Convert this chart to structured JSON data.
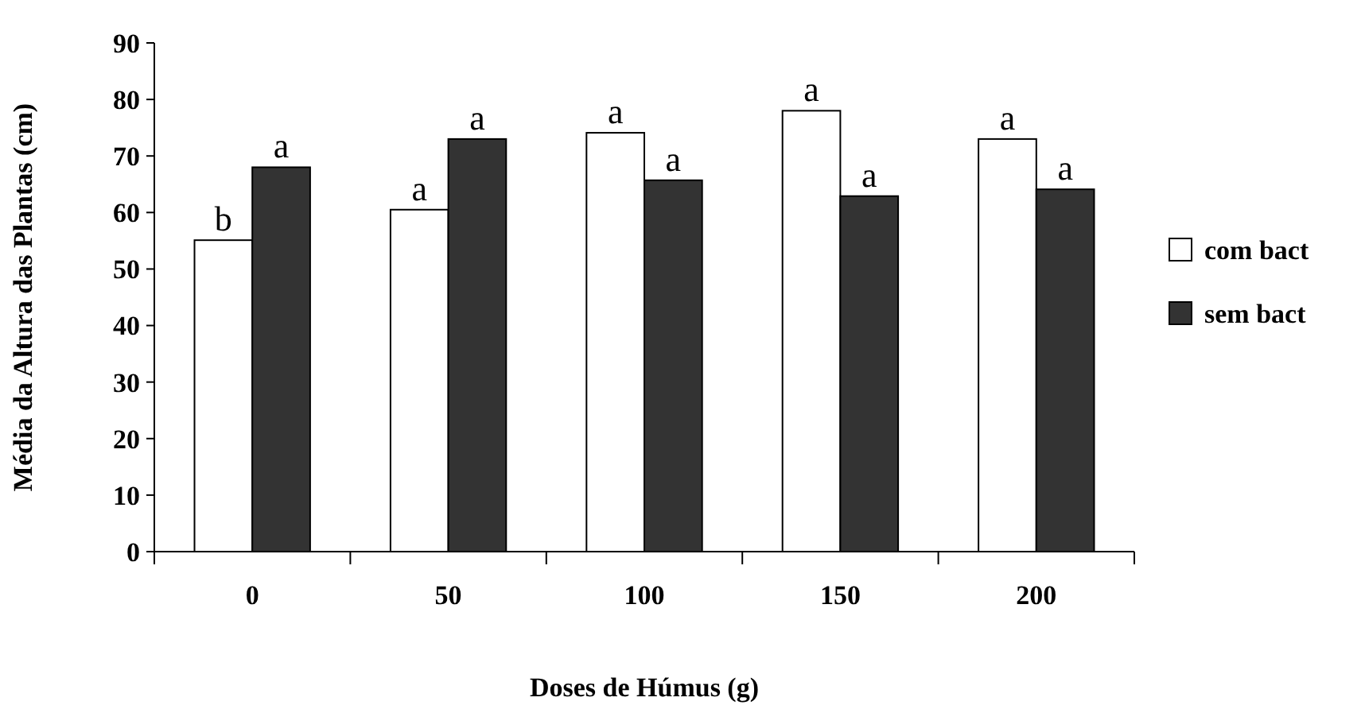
{
  "chart_data": {
    "type": "bar",
    "xlabel": "Doses de Húmus (g)",
    "ylabel": "Média da Altura das Plantas (cm)",
    "categories": [
      "0",
      "50",
      "100",
      "150",
      "200"
    ],
    "ylim": [
      0,
      90
    ],
    "yticks": [
      0,
      10,
      20,
      30,
      40,
      50,
      60,
      70,
      80,
      90
    ],
    "grid": false,
    "legend": "right",
    "series": [
      {
        "name": "com bact",
        "color": "#ffffff",
        "values": [
          55.1,
          60.5,
          74.1,
          78,
          73
        ],
        "value_labels": [
          "b",
          "a",
          "a",
          "a",
          "a"
        ]
      },
      {
        "name": "sem bact",
        "color": "#333333",
        "values": [
          68,
          73,
          65.7,
          62.9,
          64.1
        ],
        "value_labels": [
          "a",
          "a",
          "a",
          "a",
          "a"
        ]
      }
    ]
  }
}
